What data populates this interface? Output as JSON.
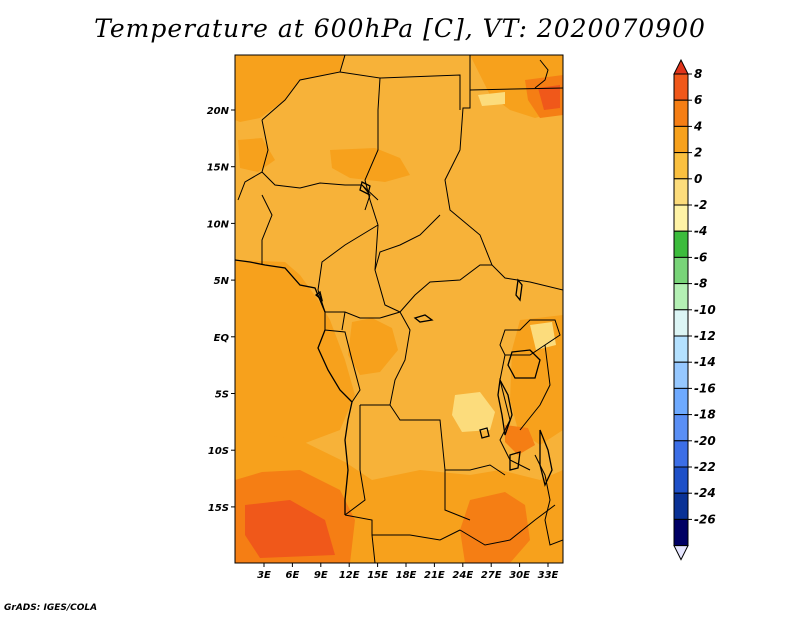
{
  "title": "Temperature at 600hPa [C], VT: 2020070900",
  "footer": "GrADS: IGES/COLA",
  "map": {
    "lat_labels": [
      "20N",
      "15N",
      "10N",
      "5N",
      "EQ",
      "5S",
      "10S",
      "15S"
    ],
    "lon_labels": [
      "3E",
      "6E",
      "9E",
      "12E",
      "15E",
      "18E",
      "21E",
      "24E",
      "27E",
      "30E",
      "33E"
    ]
  },
  "colorbar": {
    "labels": [
      "8",
      "6",
      "4",
      "2",
      "0",
      "-2",
      "-4",
      "-6",
      "-8",
      "-10",
      "-12",
      "-14",
      "-16",
      "-18",
      "-20",
      "-22",
      "-24",
      "-26"
    ],
    "colors": [
      "#e0341a",
      "#f0581a",
      "#f57e14",
      "#f7a11c",
      "#fac040",
      "#fcdc7c",
      "#fff3a6",
      "#3cbc3c",
      "#78d478",
      "#b4f0b4",
      "#dcf5f5",
      "#b4e1ff",
      "#96c8ff",
      "#6eaaff",
      "#5a8ff5",
      "#3c6ee6",
      "#1e50c8",
      "#0a3296",
      "#000064",
      "#e6e6ff"
    ]
  }
}
